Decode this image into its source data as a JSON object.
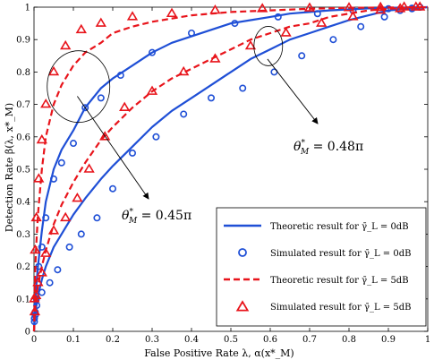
{
  "chart_data": {
    "type": "line",
    "xlabel": "False Positive Rate λ, α(x*_M)",
    "ylabel": "Detection Rate β(λ, x*_M)",
    "xlim": [
      0,
      1
    ],
    "ylim": [
      0,
      1
    ],
    "xticks": [
      "0",
      "0.1",
      "0.2",
      "0.3",
      "0.4",
      "0.5",
      "0.6",
      "0.7",
      "0.8",
      "0.9",
      "1"
    ],
    "yticks": [
      "0",
      "0.1",
      "0.2",
      "0.3",
      "0.4",
      "0.5",
      "0.6",
      "0.7",
      "0.8",
      "0.9",
      "1"
    ],
    "grid": false,
    "legend_position": "bottom-right",
    "colors": {
      "blue": "#1f4fd6",
      "red": "#e8141b"
    },
    "series": [
      {
        "name": "Theoretic result for γ̄_L = 0dB",
        "style": "solid-line",
        "color": "#1f4fd6",
        "x": [
          0.0,
          0.002,
          0.005,
          0.01,
          0.02,
          0.03,
          0.05,
          0.07,
          0.1,
          0.13,
          0.17,
          0.2,
          0.25,
          0.3,
          0.35,
          0.4,
          0.45,
          0.5,
          0.55,
          0.6,
          0.65,
          0.7,
          0.75,
          0.8,
          0.85,
          0.9,
          0.95,
          1.0
        ],
        "y": [
          0.0,
          0.04,
          0.07,
          0.11,
          0.16,
          0.2,
          0.26,
          0.3,
          0.36,
          0.41,
          0.47,
          0.51,
          0.57,
          0.63,
          0.68,
          0.72,
          0.76,
          0.8,
          0.84,
          0.87,
          0.9,
          0.92,
          0.94,
          0.96,
          0.975,
          0.99,
          0.995,
          1.0
        ]
      },
      {
        "name": "Theoretic result for γ̄_L = 0dB",
        "style": "solid-line",
        "color": "#1f4fd6",
        "x": [
          0.0,
          0.002,
          0.005,
          0.01,
          0.02,
          0.03,
          0.05,
          0.07,
          0.1,
          0.13,
          0.17,
          0.2,
          0.25,
          0.3,
          0.35,
          0.4,
          0.45,
          0.5,
          0.55,
          0.6,
          0.65,
          0.7,
          0.75,
          0.8,
          0.85,
          0.9,
          0.95,
          1.0
        ],
        "y": [
          0.0,
          0.07,
          0.13,
          0.2,
          0.31,
          0.4,
          0.5,
          0.56,
          0.62,
          0.69,
          0.75,
          0.78,
          0.82,
          0.86,
          0.89,
          0.91,
          0.93,
          0.95,
          0.96,
          0.97,
          0.98,
          0.985,
          0.99,
          0.993,
          0.996,
          0.998,
          0.999,
          1.0
        ]
      },
      {
        "name": "Simulated result for γ̄_L = 0dB",
        "style": "circle-marker",
        "color": "#1f4fd6",
        "x": [
          0.001,
          0.003,
          0.007,
          0.02,
          0.04,
          0.06,
          0.09,
          0.12,
          0.16,
          0.2,
          0.25,
          0.31,
          0.38,
          0.45,
          0.53,
          0.61,
          0.68,
          0.76,
          0.83,
          0.89,
          0.93,
          0.96,
          0.98
        ],
        "y": [
          0.03,
          0.05,
          0.08,
          0.12,
          0.15,
          0.19,
          0.26,
          0.3,
          0.35,
          0.44,
          0.55,
          0.6,
          0.67,
          0.72,
          0.75,
          0.8,
          0.85,
          0.9,
          0.94,
          0.97,
          0.99,
          0.995,
          1.0
        ]
      },
      {
        "name": "Simulated result for γ̄_L = 0dB",
        "style": "circle-marker",
        "color": "#1f4fd6",
        "x": [
          0.001,
          0.003,
          0.006,
          0.012,
          0.02,
          0.03,
          0.05,
          0.07,
          0.1,
          0.13,
          0.17,
          0.22,
          0.3,
          0.4,
          0.51,
          0.62,
          0.72,
          0.81,
          0.9,
          0.96,
          0.98
        ],
        "y": [
          0.04,
          0.06,
          0.1,
          0.2,
          0.26,
          0.35,
          0.47,
          0.52,
          0.58,
          0.69,
          0.72,
          0.79,
          0.86,
          0.92,
          0.95,
          0.97,
          0.98,
          0.99,
          0.995,
          0.997,
          1.0
        ]
      },
      {
        "name": "Theoretic result for γ̄_L = 5dB",
        "style": "dashed-line",
        "color": "#e8141b",
        "x": [
          0.0,
          0.002,
          0.005,
          0.01,
          0.02,
          0.03,
          0.05,
          0.07,
          0.1,
          0.13,
          0.17,
          0.2,
          0.25,
          0.3,
          0.35,
          0.4,
          0.45,
          0.5,
          0.55,
          0.6,
          0.65,
          0.7,
          0.75,
          0.8,
          0.85,
          0.9,
          0.95,
          1.0
        ],
        "y": [
          0.0,
          0.06,
          0.1,
          0.14,
          0.2,
          0.25,
          0.33,
          0.39,
          0.46,
          0.52,
          0.59,
          0.63,
          0.69,
          0.74,
          0.78,
          0.81,
          0.84,
          0.87,
          0.9,
          0.92,
          0.94,
          0.95,
          0.97,
          0.98,
          0.99,
          0.995,
          0.998,
          1.0
        ]
      },
      {
        "name": "Theoretic result for γ̄_L = 5dB",
        "style": "dashed-line",
        "color": "#e8141b",
        "x": [
          0.0,
          0.002,
          0.005,
          0.01,
          0.02,
          0.03,
          0.05,
          0.07,
          0.1,
          0.13,
          0.17,
          0.2,
          0.25,
          0.3,
          0.35,
          0.4,
          0.5,
          0.6,
          0.7,
          0.8,
          0.9,
          1.0
        ],
        "y": [
          0.0,
          0.15,
          0.25,
          0.36,
          0.5,
          0.6,
          0.7,
          0.76,
          0.82,
          0.86,
          0.89,
          0.92,
          0.94,
          0.955,
          0.965,
          0.975,
          0.985,
          0.99,
          0.995,
          0.998,
          0.999,
          1.0
        ]
      },
      {
        "name": "Simulated result for γ̄_L = 5dB",
        "style": "triangle-marker",
        "color": "#e8141b",
        "x": [
          0.002,
          0.005,
          0.01,
          0.02,
          0.03,
          0.05,
          0.08,
          0.11,
          0.14,
          0.18,
          0.23,
          0.3,
          0.38,
          0.46,
          0.55,
          0.64,
          0.73,
          0.81,
          0.88,
          0.93,
          0.97
        ],
        "y": [
          0.06,
          0.11,
          0.15,
          0.18,
          0.24,
          0.31,
          0.35,
          0.41,
          0.5,
          0.6,
          0.69,
          0.74,
          0.8,
          0.84,
          0.88,
          0.92,
          0.95,
          0.97,
          0.99,
          0.995,
          1.0
        ]
      },
      {
        "name": "Simulated result for γ̄_L = 5dB",
        "style": "triangle-marker",
        "color": "#e8141b",
        "x": [
          0.001,
          0.003,
          0.006,
          0.012,
          0.02,
          0.03,
          0.05,
          0.08,
          0.12,
          0.17,
          0.25,
          0.35,
          0.46,
          0.58,
          0.7,
          0.8,
          0.88,
          0.94,
          0.98
        ],
        "y": [
          0.1,
          0.25,
          0.35,
          0.47,
          0.59,
          0.7,
          0.8,
          0.88,
          0.93,
          0.95,
          0.97,
          0.98,
          0.99,
          0.995,
          0.997,
          0.998,
          0.999,
          1.0,
          1.0
        ]
      }
    ],
    "legend": [
      {
        "label": "Theoretic result for γ̄_L = 0dB",
        "style": "solid-line",
        "color": "#1f4fd6"
      },
      {
        "label": "Simulated result for γ̄_L = 0dB",
        "style": "circle-marker",
        "color": "#1f4fd6"
      },
      {
        "label": "Theoretic result for γ̄_L = 5dB",
        "style": "dashed-line",
        "color": "#e8141b"
      },
      {
        "label": "Simulated result for γ̄_L = 5dB",
        "style": "triangle-marker",
        "color": "#e8141b"
      }
    ],
    "annotations": [
      {
        "text": "θ*_M = 0.45π",
        "points_to": "left ellipse (~x 0.1, y 0.75)"
      },
      {
        "text": "θ*_M = 0.48π",
        "points_to": "right ellipse (~x 0.6, y 0.88)"
      }
    ]
  }
}
